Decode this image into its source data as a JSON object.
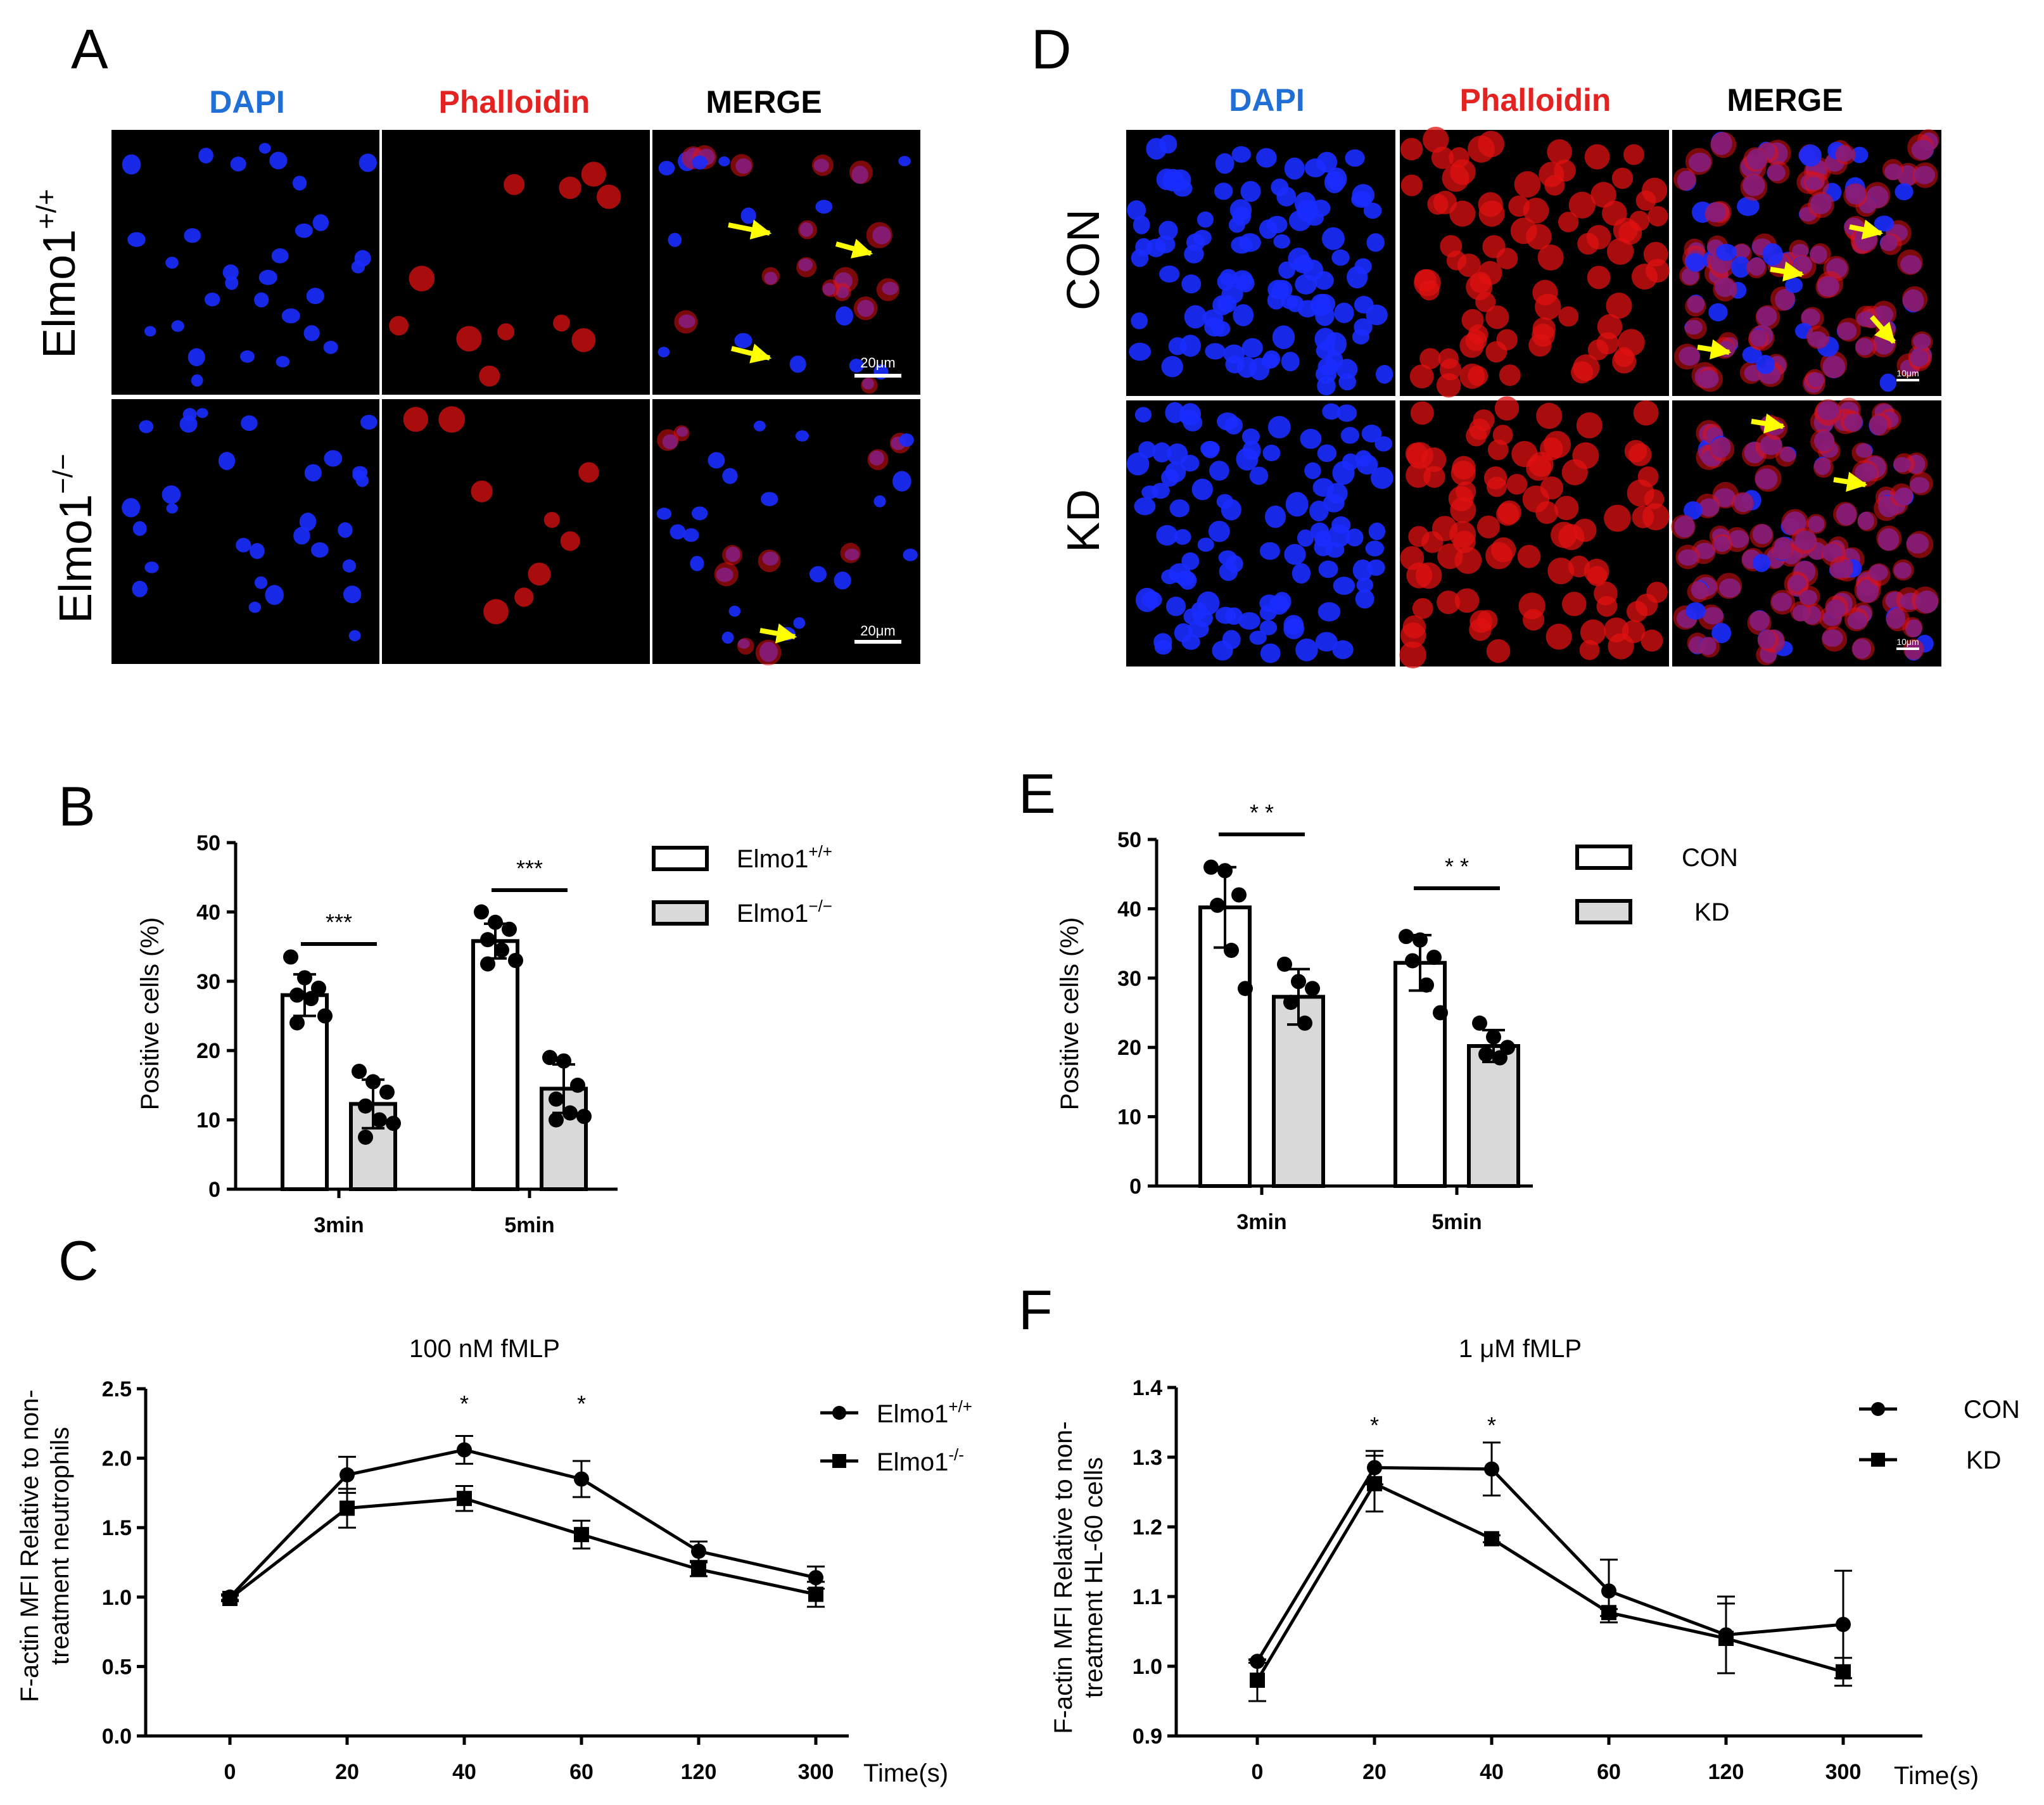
{
  "colors": {
    "dapi": "#1f6fd6",
    "phalloidin": "#e32222",
    "merge": "#000000",
    "arrow": "#ffff00",
    "bar_light": "#ffffff",
    "bar_dark": "#d9d9d9"
  },
  "panelA": {
    "label": "A",
    "channels": [
      "DAPI",
      "Phalloidin",
      "MERGE"
    ],
    "rows": [
      {
        "base": "Elmo1",
        "sup": "+/+"
      },
      {
        "base": "Elmo1",
        "sup": "−/−"
      }
    ],
    "scale": "20μm"
  },
  "panelD": {
    "label": "D",
    "channels": [
      "DAPI",
      "Phalloidin",
      "MERGE"
    ],
    "rows": [
      "CON",
      "KD"
    ],
    "scale": "10μm"
  },
  "panelB": {
    "label": "B",
    "legend": [
      {
        "base": "Elmo1",
        "sup": "+/+"
      },
      {
        "base": "Elmo1",
        "sup": "−/−"
      }
    ]
  },
  "panelE": {
    "label": "E",
    "legend": [
      "CON",
      "KD"
    ]
  },
  "panelC": {
    "label": "C",
    "legend": [
      {
        "base": "Elmo1",
        "sup": "+/+"
      },
      {
        "base": "Elmo1",
        "sup": "-/-"
      }
    ]
  },
  "panelF": {
    "label": "F",
    "legend": [
      "CON",
      "KD"
    ]
  },
  "chart_data": [
    {
      "id": "B",
      "type": "bar",
      "ylabel": "Positive cells (%)",
      "ylim": [
        0,
        50
      ],
      "yticks": [
        0,
        10,
        20,
        30,
        40,
        50
      ],
      "categories": [
        "3min",
        "5min"
      ],
      "series": [
        {
          "name": "Elmo1+/+",
          "values": [
            28,
            35.8
          ],
          "errors": [
            3,
            2.5
          ],
          "points": [
            [
              33.5,
              30.5,
              29,
              28,
              27.5,
              25,
              24
            ],
            [
              40,
              38.5,
              37.5,
              36,
              34.5,
              33,
              32.5
            ]
          ]
        },
        {
          "name": "Elmo1−/−",
          "values": [
            12.3,
            14.5
          ],
          "errors": [
            3.5,
            3.5
          ],
          "points": [
            [
              17,
              15.5,
              14,
              12,
              10,
              9.5,
              7.5
            ],
            [
              19,
              18.5,
              15,
              13,
              11,
              10.5,
              10
            ]
          ]
        }
      ],
      "significance": [
        "***",
        "***"
      ]
    },
    {
      "id": "E",
      "type": "bar",
      "ylabel": "Positive cells (%)",
      "ylim": [
        0,
        50
      ],
      "yticks": [
        0,
        10,
        20,
        30,
        40,
        50
      ],
      "categories": [
        "3min",
        "5min"
      ],
      "series": [
        {
          "name": "CON",
          "values": [
            40.2,
            32.2
          ],
          "errors": [
            5.8,
            4
          ],
          "points": [
            [
              46,
              45.5,
              42,
              40.5,
              34,
              28.5
            ],
            [
              36,
              35.5,
              33,
              32.5,
              29,
              25
            ]
          ]
        },
        {
          "name": "KD",
          "values": [
            27.3,
            20.2
          ],
          "errors": [
            4,
            2.3
          ],
          "points": [
            [
              32,
              29.5,
              28.5,
              26.5,
              23.5
            ],
            [
              23.5,
              21.5,
              20,
              19,
              18.5
            ]
          ]
        }
      ],
      "significance": [
        "* *",
        "* *"
      ]
    },
    {
      "id": "C",
      "type": "line",
      "title": "100 nM fMLP",
      "ylabel": "F-actin MFI Relative to non-treatment neutrophils",
      "ylabel_lines": [
        "F-actin MFI Relative to non-",
        "treatment neutrophils"
      ],
      "xlabel": "Time(s)",
      "x": [
        "0",
        "20",
        "40",
        "60",
        "120",
        "300"
      ],
      "ylim": [
        0,
        2.5
      ],
      "yticks": [
        "0.0",
        "0.5",
        "1.0",
        "1.5",
        "2.0",
        "2.5"
      ],
      "series": [
        {
          "name": "Elmo1+/+",
          "marker": "circle",
          "values": [
            1.0,
            1.88,
            2.06,
            1.85,
            1.33,
            1.14
          ],
          "errors": [
            0.02,
            0.13,
            0.1,
            0.13,
            0.07,
            0.08
          ]
        },
        {
          "name": "Elmo1-/-",
          "marker": "square",
          "values": [
            0.99,
            1.64,
            1.71,
            1.45,
            1.2,
            1.02
          ],
          "errors": [
            0.02,
            0.14,
            0.09,
            0.1,
            0.05,
            0.09
          ]
        }
      ],
      "significance": [
        "",
        "",
        "*",
        "*",
        "",
        ""
      ]
    },
    {
      "id": "F",
      "type": "line",
      "title": "1 μM fMLP",
      "ylabel": "F-actin MFI Relative to non-treatment HL-60 cells",
      "ylabel_lines": [
        "F-actin MFI Relative to non-",
        "treatment HL-60 cells"
      ],
      "xlabel": "Time(s)",
      "x": [
        "0",
        "20",
        "40",
        "60",
        "120",
        "300"
      ],
      "ylim": [
        0.9,
        1.4
      ],
      "yticks": [
        "0.9",
        "1.0",
        "1.1",
        "1.2",
        "1.3",
        "1.4"
      ],
      "series": [
        {
          "name": "CON",
          "marker": "circle",
          "values": [
            1.007,
            1.285,
            1.283,
            1.108,
            1.045,
            1.06
          ],
          "errors": [
            0.002,
            0.024,
            0.038,
            0.045,
            0.055,
            0.077
          ]
        },
        {
          "name": "KD",
          "marker": "square",
          "values": [
            0.98,
            1.262,
            1.183,
            1.077,
            1.04,
            0.992
          ],
          "errors": [
            0.03,
            0.04,
            0.005,
            0.005,
            0.05,
            0.02
          ]
        }
      ],
      "significance": [
        "",
        "*",
        "*",
        "",
        "",
        ""
      ]
    }
  ]
}
